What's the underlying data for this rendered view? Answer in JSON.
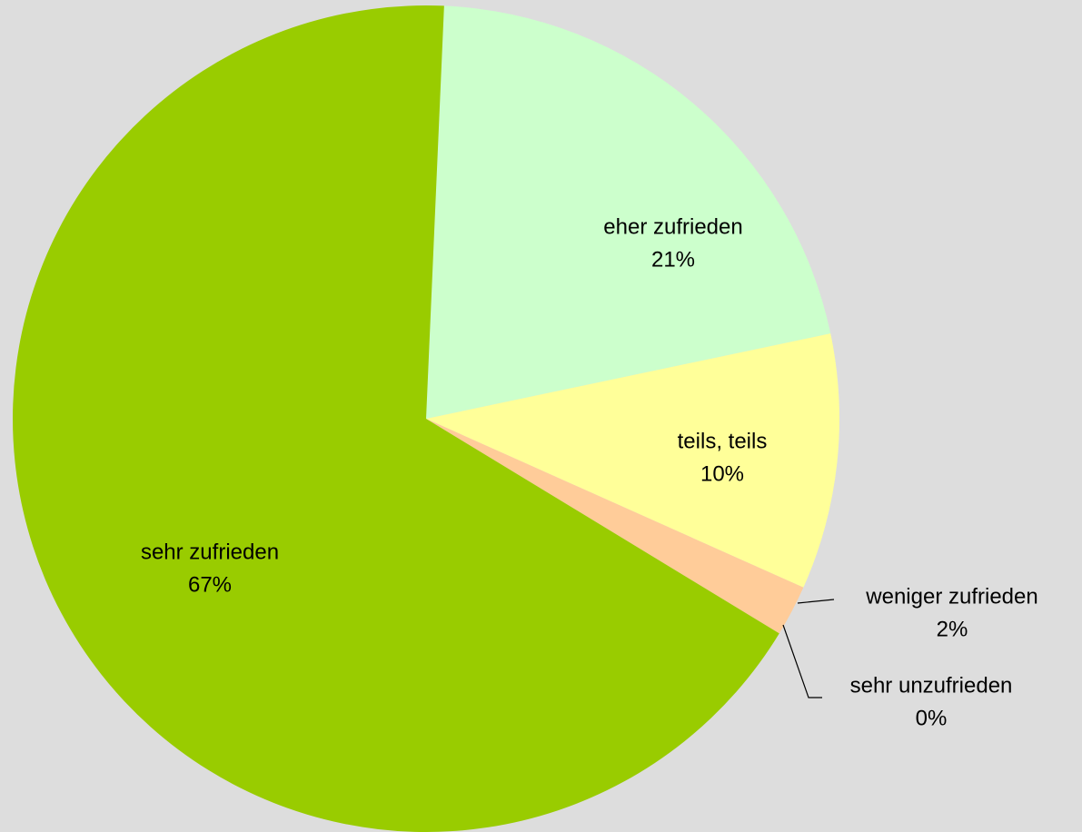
{
  "chart_data": {
    "type": "pie",
    "categories": [
      "eher zufrieden",
      "teils, teils",
      "weniger zufrieden",
      "sehr unzufrieden",
      "sehr zufrieden"
    ],
    "values": [
      21,
      10,
      2,
      0,
      67
    ],
    "value_labels": [
      "21%",
      "10%",
      "2%",
      "0%",
      "67%"
    ],
    "colors": [
      "#ccffcc",
      "#ffff99",
      "#ffcc99",
      "#ff9966",
      "#99cc00"
    ]
  }
}
